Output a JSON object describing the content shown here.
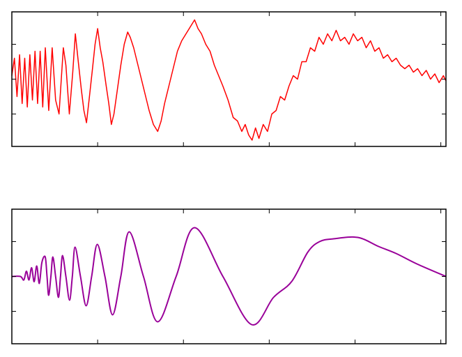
{
  "chart_data": [
    {
      "type": "line",
      "xlim": [
        0,
        5.06
      ],
      "xticks": [
        1,
        2,
        3,
        4,
        5
      ],
      "ylim": [
        -1.93,
        1.93
      ],
      "yticks": [
        -1,
        0,
        1
      ],
      "smooth": false,
      "x": [
        0,
        0.03,
        0.06,
        0.09,
        0.12,
        0.15,
        0.18,
        0.21,
        0.24,
        0.27,
        0.3,
        0.33,
        0.36,
        0.39,
        0.43,
        0.47,
        0.51,
        0.55,
        0.6,
        0.63,
        0.67,
        0.71,
        0.74,
        0.77,
        0.81,
        0.84,
        0.87,
        0.9,
        0.94,
        0.97,
        1.0,
        1.03,
        1.06,
        1.1,
        1.13,
        1.16,
        1.19,
        1.23,
        1.27,
        1.31,
        1.35,
        1.38,
        1.42,
        1.46,
        1.5,
        1.55,
        1.6,
        1.65,
        1.7,
        1.74,
        1.78,
        1.83,
        1.88,
        1.93,
        1.98,
        2.03,
        2.08,
        2.13,
        2.17,
        2.21,
        2.26,
        2.31,
        2.36,
        2.41,
        2.46,
        2.52,
        2.58,
        2.63,
        2.68,
        2.72,
        2.76,
        2.8,
        2.84,
        2.88,
        2.93,
        2.98,
        3.03,
        3.08,
        3.13,
        3.18,
        3.23,
        3.28,
        3.33,
        3.38,
        3.43,
        3.48,
        3.53,
        3.58,
        3.63,
        3.68,
        3.73,
        3.78,
        3.83,
        3.88,
        3.93,
        3.98,
        4.03,
        4.08,
        4.13,
        4.18,
        4.23,
        4.28,
        4.33,
        4.38,
        4.43,
        4.48,
        4.53,
        4.58,
        4.63,
        4.68,
        4.73,
        4.78,
        4.83,
        4.88,
        4.93,
        4.98,
        5.03,
        5.06
      ],
      "series": [
        {
          "color": "#ff0000",
          "values": [
            0.1,
            0.6,
            -0.5,
            0.7,
            -0.7,
            0.6,
            -0.8,
            0.7,
            -0.6,
            0.8,
            -0.7,
            0.8,
            -0.8,
            0.9,
            -0.9,
            0.9,
            -0.6,
            -1.0,
            0.9,
            0.4,
            -1.0,
            0.2,
            1.3,
            0.6,
            -0.3,
            -0.9,
            -1.25,
            -0.6,
            0.3,
            1.0,
            1.45,
            0.9,
            0.5,
            -0.2,
            -0.7,
            -1.3,
            -1.0,
            -0.3,
            0.4,
            1.0,
            1.35,
            1.2,
            0.9,
            0.5,
            0.1,
            -0.4,
            -0.9,
            -1.3,
            -1.5,
            -1.2,
            -0.7,
            -0.2,
            0.3,
            0.8,
            1.1,
            1.3,
            1.5,
            1.7,
            1.45,
            1.3,
            1.0,
            0.8,
            0.4,
            0.1,
            -0.2,
            -0.6,
            -1.1,
            -1.2,
            -1.5,
            -1.3,
            -1.6,
            -1.75,
            -1.4,
            -1.7,
            -1.3,
            -1.5,
            -1.0,
            -0.9,
            -0.5,
            -0.6,
            -0.2,
            0.1,
            0.0,
            0.5,
            0.5,
            0.9,
            0.8,
            1.2,
            1.0,
            1.3,
            1.1,
            1.4,
            1.1,
            1.2,
            1.0,
            1.3,
            1.1,
            1.2,
            0.9,
            1.1,
            0.8,
            0.9,
            0.6,
            0.7,
            0.5,
            0.6,
            0.4,
            0.3,
            0.4,
            0.2,
            0.3,
            0.1,
            0.25,
            0.0,
            0.15,
            -0.1,
            0.1,
            -0.05
          ]
        }
      ]
    },
    {
      "type": "line",
      "xlim": [
        0,
        5.06
      ],
      "xticks": [
        1,
        2,
        3,
        4,
        5
      ],
      "ylim": [
        -1.93,
        1.93
      ],
      "yticks": [
        -1,
        0,
        1
      ],
      "smooth": true,
      "x": [
        0,
        0.1,
        0.14,
        0.17,
        0.2,
        0.23,
        0.26,
        0.29,
        0.32,
        0.35,
        0.389,
        0.41,
        0.429,
        0.455,
        0.478,
        0.51,
        0.543,
        0.567,
        0.591,
        0.63,
        0.672,
        0.705,
        0.737,
        0.8,
        0.866,
        0.93,
        0.996,
        1.085,
        1.174,
        1.27,
        1.368,
        1.534,
        1.7,
        1.915,
        2.13,
        2.46,
        2.794,
        3.05,
        3.263,
        3.45,
        3.587,
        3.749,
        4.032,
        4.275,
        4.478,
        4.721,
        5.06
      ],
      "series": [
        {
          "color": "#990099",
          "values": [
            0,
            0,
            -0.1,
            0.15,
            -0.1,
            0.25,
            -0.15,
            0.3,
            -0.2,
            0.4,
            0.56,
            0,
            -0.54,
            0,
            0.56,
            0,
            -0.6,
            0,
            0.6,
            0,
            -0.68,
            0,
            0.84,
            0,
            -0.84,
            0,
            0.92,
            0,
            -1.1,
            0,
            1.28,
            0,
            -1.3,
            0,
            1.4,
            0,
            -1.38,
            -0.6,
            -0.14,
            0.7,
            1.0,
            1.08,
            1.12,
            0.86,
            0.66,
            0.36,
            0
          ]
        }
      ]
    }
  ]
}
